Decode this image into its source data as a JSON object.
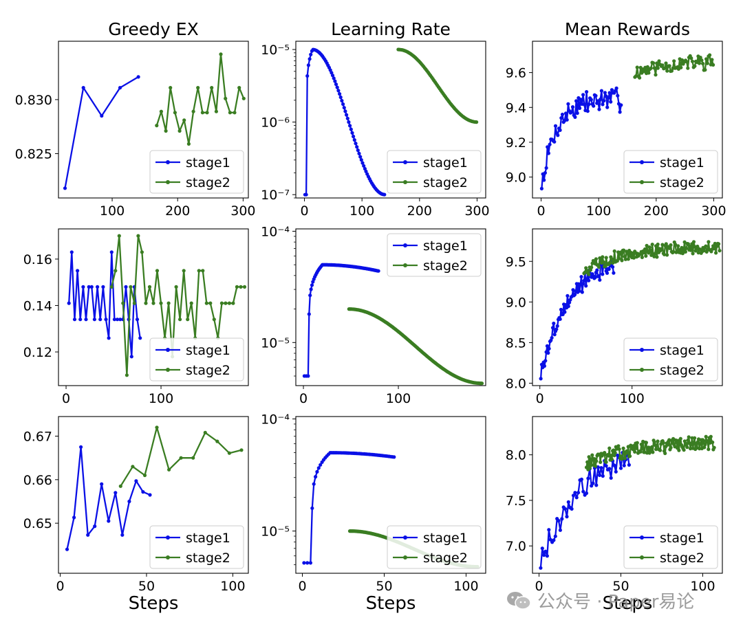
{
  "figure": {
    "column_titles": [
      "Greedy EX",
      "Learning Rate",
      "Mean Rewards"
    ],
    "xlabel": "Steps",
    "colors": {
      "stage1": "#0a10e6",
      "stage2": "#3a7d22",
      "axis": "#000000",
      "text": "#000000"
    }
  },
  "watermark": {
    "text": "公众号 · Paper易论",
    "icon": "wechat-icon"
  },
  "chart_data": [
    {
      "id": "r0c0",
      "type": "line",
      "title": "Greedy EX",
      "xlabel": "",
      "ylabel": "",
      "xlim": [
        18,
        308
      ],
      "ylim": [
        0.8209,
        0.8354
      ],
      "yscale": "linear",
      "xticks": [
        100,
        200,
        300
      ],
      "xtick_labels": [
        "100",
        "200",
        "300"
      ],
      "yticks": [
        0.825,
        0.83
      ],
      "ytick_labels": [
        "0.825",
        "0.830"
      ],
      "legend": "lower-right",
      "series": [
        {
          "name": "stage1",
          "x": [
            28,
            56,
            84,
            112,
            140
          ],
          "y": [
            0.8218,
            0.8311,
            0.8285,
            0.8311,
            0.8321
          ]
        },
        {
          "name": "stage2",
          "x": [
            168,
            175,
            182,
            189,
            196,
            203,
            210,
            217,
            224,
            231,
            238,
            245,
            252,
            259,
            266,
            273,
            280,
            287,
            294,
            301
          ],
          "y": [
            0.8276,
            0.8289,
            0.8271,
            0.8311,
            0.8288,
            0.8271,
            0.8281,
            0.8259,
            0.8289,
            0.8311,
            0.8288,
            0.8288,
            0.8311,
            0.8289,
            0.8342,
            0.8301,
            0.8288,
            0.8288,
            0.8311,
            0.8301
          ]
        }
      ]
    },
    {
      "id": "r0c1",
      "type": "line",
      "title": "Learning Rate",
      "xlabel": "",
      "ylabel": "",
      "xlim": [
        -15,
        315
      ],
      "ylim": [
        9e-08,
        1.3e-05
      ],
      "yscale": "log",
      "xticks": [
        0,
        100,
        200,
        300
      ],
      "xtick_labels": [
        "0",
        "100",
        "200",
        "300"
      ],
      "yticks": [
        1e-07,
        1e-06,
        1e-05
      ],
      "ytick_labels": [
        "10⁻⁷",
        "10⁻⁶",
        "10⁻⁵"
      ],
      "legend": "lower-right",
      "series": [
        {
          "name": "stage1",
          "gen": {
            "kind": "rise_cos",
            "x0": 1,
            "x1": 140,
            "step": 2,
            "warm_end": 14,
            "peak": 1e-05,
            "start": 1e-07,
            "end": 1e-07,
            "pre": [
              [
                1,
                1e-07
              ],
              [
                3,
                1e-07
              ]
            ]
          }
        },
        {
          "name": "stage2",
          "gen": {
            "kind": "cos",
            "x0": 163,
            "x1": 300,
            "step": 2,
            "peak": 1e-05,
            "end": 1e-06
          }
        }
      ]
    },
    {
      "id": "r0c2",
      "type": "line",
      "title": "Mean Rewards",
      "xlabel": "",
      "ylabel": "",
      "xlim": [
        -15,
        315
      ],
      "ylim": [
        8.88,
        9.78
      ],
      "yscale": "linear",
      "xticks": [
        0,
        100,
        200,
        300
      ],
      "xtick_labels": [
        "0",
        "100",
        "200",
        "300"
      ],
      "yticks": [
        9.0,
        9.2,
        9.4,
        9.6
      ],
      "ytick_labels": [
        "9.0",
        "9.2",
        "9.4",
        "9.6"
      ],
      "legend": "lower-right",
      "series": [
        {
          "name": "stage1",
          "gen": {
            "kind": "noisy",
            "x0": 1,
            "x1": 140,
            "step": 2,
            "start": 8.95,
            "end": 9.45,
            "rate": 25,
            "amp": 0.06,
            "seed": 7
          }
        },
        {
          "name": "stage2",
          "gen": {
            "kind": "noisy",
            "x0": 163,
            "x1": 300,
            "step": 2,
            "start": 9.6,
            "end": 9.67,
            "rate": 60,
            "amp": 0.04,
            "seed": 11
          }
        }
      ]
    },
    {
      "id": "r1c0",
      "type": "line",
      "title": "",
      "xlabel": "",
      "ylabel": "",
      "xlim": [
        -8,
        192
      ],
      "ylim": [
        0.1055,
        0.173
      ],
      "yscale": "linear",
      "xticks": [
        0,
        100
      ],
      "xtick_labels": [
        "0",
        "100"
      ],
      "yticks": [
        0.12,
        0.14,
        0.16
      ],
      "ytick_labels": [
        "0.12",
        "0.14",
        "0.16"
      ],
      "legend": "lower-right",
      "series": [
        {
          "name": "stage1",
          "x": [
            3,
            6,
            9,
            12,
            15,
            18,
            21,
            24,
            27,
            30,
            33,
            36,
            39,
            42,
            45,
            48,
            51,
            54,
            57,
            60,
            63,
            66,
            69,
            72,
            75,
            78
          ],
          "y": [
            0.141,
            0.163,
            0.134,
            0.155,
            0.134,
            0.148,
            0.134,
            0.148,
            0.148,
            0.134,
            0.148,
            0.134,
            0.148,
            0.134,
            0.126,
            0.163,
            0.134,
            0.134,
            0.134,
            0.134,
            0.148,
            0.134,
            0.118,
            0.148,
            0.134,
            0.126
          ]
        },
        {
          "name": "stage2",
          "x": [
            48,
            52,
            56,
            60,
            64,
            68,
            72,
            76,
            80,
            84,
            88,
            92,
            96,
            100,
            104,
            108,
            112,
            116,
            120,
            124,
            128,
            132,
            136,
            140,
            144,
            148,
            152,
            156,
            160,
            164,
            168,
            172,
            176,
            180,
            184,
            188
          ],
          "y": [
            0.148,
            0.155,
            0.17,
            0.141,
            0.11,
            0.148,
            0.141,
            0.17,
            0.163,
            0.141,
            0.148,
            0.141,
            0.155,
            0.141,
            0.126,
            0.141,
            0.118,
            0.148,
            0.134,
            0.155,
            0.134,
            0.141,
            0.126,
            0.155,
            0.155,
            0.141,
            0.141,
            0.134,
            0.126,
            0.141,
            0.141,
            0.141,
            0.141,
            0.148,
            0.148,
            0.148
          ]
        }
      ]
    },
    {
      "id": "r1c1",
      "type": "line",
      "title": "",
      "xlabel": "",
      "ylabel": "",
      "xlim": [
        -8,
        192
      ],
      "ylim": [
        4.1e-06,
        0.000105
      ],
      "yscale": "log",
      "xticks": [
        0,
        100
      ],
      "xtick_labels": [
        "0",
        "100"
      ],
      "yticks": [
        1e-05,
        0.0001
      ],
      "ytick_labels": [
        "10⁻⁵",
        "10⁻⁴"
      ],
      "legend": "upper-right",
      "series": [
        {
          "name": "stage1",
          "gen": {
            "kind": "rise_cos",
            "x0": 1,
            "x1": 79,
            "step": 1,
            "warm_end": 20,
            "peak": 5e-05,
            "start": 1.8e-05,
            "end": 3.6e-05,
            "tail_end": 200,
            "pre": [
              [
                1,
                5e-06
              ],
              [
                3,
                5e-06
              ],
              [
                5,
                5e-06
              ],
              [
                6,
                1.8e-05
              ]
            ]
          }
        },
        {
          "name": "stage2",
          "gen": {
            "kind": "cos",
            "x0": 48,
            "x1": 188,
            "step": 1,
            "peak": 2e-05,
            "end": 4.3e-06,
            "scale_end": 188
          }
        }
      ]
    },
    {
      "id": "r1c2",
      "type": "line",
      "title": "",
      "xlabel": "",
      "ylabel": "",
      "xlim": [
        -8,
        198
      ],
      "ylim": [
        7.97,
        9.9
      ],
      "yscale": "linear",
      "xticks": [
        0,
        100
      ],
      "xtick_labels": [
        "0",
        "100"
      ],
      "yticks": [
        8.0,
        8.5,
        9.0,
        9.5
      ],
      "ytick_labels": [
        "8.0",
        "8.5",
        "9.0",
        "9.5"
      ],
      "legend": "lower-right",
      "series": [
        {
          "name": "stage1",
          "gen": {
            "kind": "noisy",
            "x0": 1,
            "x1": 80,
            "step": 1,
            "start": 8.1,
            "end": 9.55,
            "rate": 30,
            "amp": 0.09,
            "seed": 3
          }
        },
        {
          "name": "stage2",
          "gen": {
            "kind": "noisy",
            "x0": 48,
            "x1": 195,
            "step": 1,
            "start": 9.38,
            "end": 9.68,
            "rate": 40,
            "amp": 0.07,
            "seed": 5
          }
        }
      ]
    },
    {
      "id": "r2c0",
      "type": "line",
      "title": "",
      "xlabel": "Steps",
      "ylabel": "",
      "xlim": [
        -1,
        109
      ],
      "ylim": [
        0.6385,
        0.6745
      ],
      "yscale": "linear",
      "xticks": [
        0,
        50,
        100
      ],
      "xtick_labels": [
        "0",
        "50",
        "100"
      ],
      "yticks": [
        0.65,
        0.66,
        0.67
      ],
      "ytick_labels": [
        "0.65",
        "0.66",
        "0.67"
      ],
      "legend": "lower-right",
      "series": [
        {
          "name": "stage1",
          "x": [
            4,
            8,
            12,
            16,
            20,
            24,
            28,
            32,
            36,
            40,
            44,
            48,
            52
          ],
          "y": [
            0.644,
            0.6513,
            0.6675,
            0.6473,
            0.6493,
            0.659,
            0.6505,
            0.657,
            0.6473,
            0.655,
            0.6597,
            0.6572,
            0.6565
          ]
        },
        {
          "name": "stage2",
          "x": [
            35,
            42,
            49,
            56,
            63,
            70,
            77,
            84,
            91,
            98,
            105
          ],
          "y": [
            0.6585,
            0.663,
            0.661,
            0.672,
            0.6623,
            0.665,
            0.665,
            0.6708,
            0.6688,
            0.6661,
            0.6668
          ]
        }
      ]
    },
    {
      "id": "r2c1",
      "type": "line",
      "title": "",
      "xlabel": "Steps",
      "ylabel": "",
      "xlim": [
        -4,
        112
      ],
      "ylim": [
        4.2e-06,
        0.000105
      ],
      "yscale": "log",
      "xticks": [
        0,
        50,
        100
      ],
      "xtick_labels": [
        "0",
        "50",
        "100"
      ],
      "yticks": [
        1e-05,
        0.0001
      ],
      "ytick_labels": [
        "10⁻⁵",
        "10⁻⁴"
      ],
      "legend": "lower-right",
      "series": [
        {
          "name": "stage1",
          "gen": {
            "kind": "rise_cos",
            "x0": 1,
            "x1": 56,
            "step": 1,
            "warm_end": 17,
            "peak": 5e-05,
            "start": 1.6e-05,
            "end": 4.3e-05,
            "tail_end": 160,
            "pre": [
              [
                1,
                5.2e-06
              ],
              [
                3,
                5.2e-06
              ],
              [
                5,
                5.2e-06
              ],
              [
                6,
                1.6e-05
              ]
            ]
          }
        },
        {
          "name": "stage2",
          "gen": {
            "kind": "cos",
            "x0": 29,
            "x1": 107,
            "step": 0.5,
            "peak": 1e-05,
            "end": 4.8e-06,
            "scale_end": 107
          }
        }
      ]
    },
    {
      "id": "r2c2",
      "type": "line",
      "title": "",
      "xlabel": "Steps",
      "ylabel": "",
      "xlim": [
        -4,
        112
      ],
      "ylim": [
        6.7,
        8.42
      ],
      "yscale": "linear",
      "xticks": [
        0,
        50,
        100
      ],
      "xtick_labels": [
        "0",
        "50",
        "100"
      ],
      "yticks": [
        7.0,
        7.5,
        8.0
      ],
      "ytick_labels": [
        "7.0",
        "7.5",
        "8.0"
      ],
      "legend": "lower-right",
      "series": [
        {
          "name": "stage1",
          "gen": {
            "kind": "noisy",
            "x0": 1,
            "x1": 55,
            "step": 1,
            "start": 6.85,
            "end": 8.2,
            "rate": 30,
            "amp": 0.12,
            "seed": 9
          }
        },
        {
          "name": "stage2",
          "gen": {
            "kind": "noisy",
            "x0": 29,
            "x1": 107,
            "step": 0.5,
            "start": 7.9,
            "end": 8.15,
            "rate": 30,
            "amp": 0.07,
            "seed": 13
          }
        }
      ]
    }
  ]
}
